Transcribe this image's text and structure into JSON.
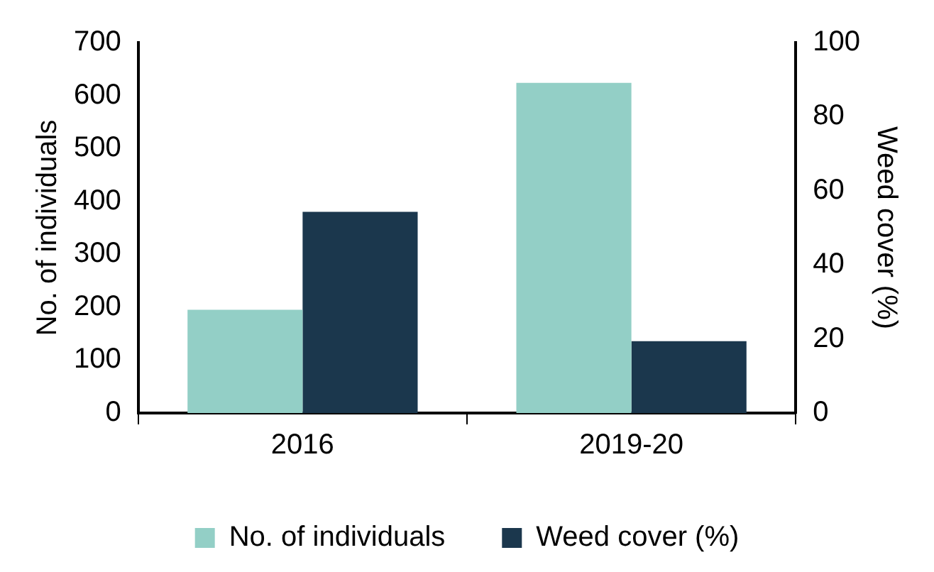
{
  "chart_data": {
    "type": "bar",
    "categories": [
      "2016",
      "2019-20"
    ],
    "ylabel": "No. of individuals",
    "y2label": "Weed cover (%)",
    "series": [
      {
        "name": "No. of individuals",
        "color": "#93cfc6",
        "values": [
          195,
          624
        ]
      },
      {
        "name": "Weed cover (%)",
        "color": "#1b374d",
        "values": [
          54.3,
          19.4
        ],
        "axis": "y2"
      }
    ],
    "ylim": [
      0,
      700
    ],
    "yticks": [
      0,
      100,
      200,
      300,
      400,
      500,
      600,
      700
    ],
    "y2lim": [
      0,
      100
    ],
    "y2ticks": [
      0,
      20,
      40,
      60,
      80,
      100
    ],
    "grid": false,
    "legend": "bottom"
  }
}
